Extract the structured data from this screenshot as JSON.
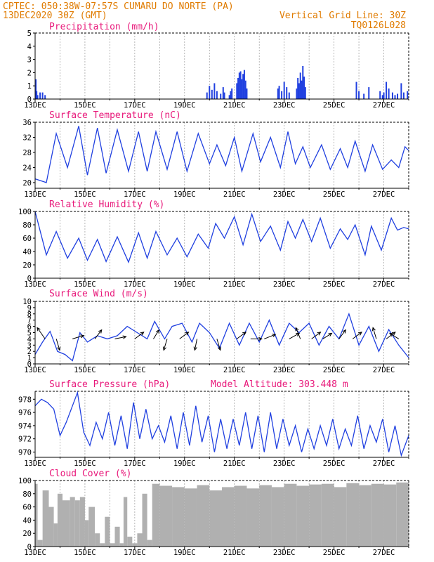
{
  "header": {
    "line1_left": "CPTEC:  050:38W-07:57S  CUMARU DO NORTE (PA)",
    "line2_left": "13DEC2020 30Z (GMT)",
    "line2_right": "Vertical Grid Line: 30Z",
    "line3_right": "TQ0126L028"
  },
  "colors": {
    "header": "#e07b00",
    "title": "#e8187a",
    "line": "#2040e0",
    "cloud": "#b0b0b0",
    "grid": "#9a9a9a"
  },
  "chart_data": [
    {
      "type": "bar",
      "title": "Precipitation (mm/h)",
      "xlabel": "",
      "ylabel": "mm/h",
      "x_tick_labels": [
        "13DEC",
        "15DEC",
        "17DEC",
        "19DEC",
        "21DEC",
        "23DEC",
        "25DEC",
        "27DEC"
      ],
      "yticks": [
        0,
        1,
        2,
        3,
        4,
        5
      ],
      "ylim": [
        0,
        5
      ],
      "x_range_days": [
        0,
        15
      ],
      "series": [
        {
          "name": "precipitation",
          "x": [
            0.03,
            0.06,
            0.1,
            0.2,
            0.3,
            0.4,
            6.9,
            7.0,
            7.1,
            7.2,
            7.3,
            7.45,
            7.55,
            7.6,
            7.8,
            7.85,
            7.9,
            8.1,
            8.15,
            8.2,
            8.25,
            8.3,
            8.35,
            8.4,
            8.45,
            8.5,
            9.75,
            9.8,
            9.9,
            10.0,
            10.1,
            10.2,
            10.5,
            10.55,
            10.6,
            10.65,
            10.7,
            10.75,
            10.8,
            10.85,
            12.9,
            13.0,
            13.2,
            13.4,
            13.85,
            13.95,
            14.0,
            14.1,
            14.2,
            14.35,
            14.45,
            14.55,
            14.7,
            14.8,
            14.95
          ],
          "values": [
            1.5,
            0.6,
            0.3,
            0.5,
            0.5,
            0.3,
            0.5,
            1.0,
            0.7,
            1.2,
            0.6,
            0.4,
            0.9,
            0.5,
            0.3,
            0.6,
            0.8,
            1.2,
            1.6,
            2.0,
            2.1,
            1.5,
            1.9,
            2.2,
            1.4,
            0.8,
            0.8,
            1.0,
            0.6,
            1.3,
            0.9,
            0.5,
            0.8,
            1.6,
            1.2,
            2.0,
            1.4,
            2.5,
            1.7,
            0.9,
            1.3,
            0.6,
            0.4,
            0.9,
            0.6,
            0.3,
            0.5,
            1.3,
            0.8,
            0.5,
            0.3,
            0.4,
            1.2,
            0.5,
            0.6
          ]
        }
      ]
    },
    {
      "type": "line",
      "title": "Surface Temperature (nC)",
      "x_tick_labels": [
        "13DEC",
        "15DEC",
        "17DEC",
        "19DEC",
        "21DEC",
        "23DEC",
        "25DEC",
        "27DEC"
      ],
      "yticks": [
        20,
        24,
        28,
        32,
        36
      ],
      "ylim": [
        18.5,
        36
      ],
      "x_range_days": [
        0,
        15
      ],
      "series": [
        {
          "name": "temperature",
          "x": [
            0,
            0.45,
            0.85,
            1.3,
            1.75,
            2.1,
            2.5,
            2.85,
            3.3,
            3.75,
            4.15,
            4.5,
            4.85,
            5.3,
            5.7,
            6.1,
            6.55,
            7.0,
            7.3,
            7.65,
            8.0,
            8.3,
            8.75,
            9.05,
            9.45,
            9.85,
            10.15,
            10.45,
            10.75,
            11.05,
            11.5,
            11.85,
            12.25,
            12.55,
            12.85,
            13.25,
            13.55,
            13.95,
            14.3,
            14.6,
            14.85,
            15
          ],
          "values": [
            21,
            20,
            33,
            24,
            35,
            22,
            34.5,
            22.5,
            34,
            23,
            33.5,
            23,
            33.5,
            23.5,
            33.5,
            23,
            33,
            25,
            30,
            24.5,
            32,
            23,
            33,
            25.5,
            32,
            24,
            33.5,
            25,
            29.5,
            24,
            30,
            23.5,
            29,
            24,
            31,
            23,
            30,
            23.5,
            26,
            24,
            29.5,
            28.5
          ]
        }
      ]
    },
    {
      "type": "line",
      "title": "Relative Humidity (%)",
      "x_tick_labels": [
        "13DEC",
        "15DEC",
        "17DEC",
        "19DEC",
        "21DEC",
        "23DEC",
        "25DEC",
        "27DEC"
      ],
      "yticks": [
        0,
        20,
        40,
        60,
        80,
        100
      ],
      "ylim": [
        0,
        100
      ],
      "x_range_days": [
        0,
        15
      ],
      "series": [
        {
          "name": "humidity",
          "x": [
            0,
            0.45,
            0.85,
            1.3,
            1.75,
            2.1,
            2.5,
            2.85,
            3.3,
            3.75,
            4.15,
            4.5,
            4.85,
            5.3,
            5.7,
            6.1,
            6.55,
            6.95,
            7.25,
            7.6,
            8.0,
            8.35,
            8.7,
            9.05,
            9.45,
            9.85,
            10.15,
            10.45,
            10.75,
            11.1,
            11.45,
            11.85,
            12.25,
            12.55,
            12.85,
            13.25,
            13.5,
            13.9,
            14.3,
            14.55,
            14.8,
            15
          ],
          "values": [
            100,
            35,
            70,
            30,
            60,
            27,
            58,
            25,
            62,
            24,
            68,
            30,
            70,
            35,
            60,
            32,
            66,
            45,
            82,
            60,
            92,
            50,
            96,
            55,
            78,
            42,
            85,
            60,
            88,
            55,
            90,
            45,
            74,
            58,
            80,
            35,
            78,
            42,
            90,
            72,
            76,
            74
          ]
        }
      ]
    },
    {
      "type": "line",
      "title": "Surface Wind (m/s)",
      "x_tick_labels": [
        "13DEC",
        "15DEC",
        "17DEC",
        "19DEC",
        "21DEC",
        "23DEC",
        "25DEC",
        "27DEC"
      ],
      "yticks": [
        0,
        1,
        2,
        3,
        4,
        5,
        6,
        7,
        8,
        9,
        10
      ],
      "ylim": [
        0,
        10
      ],
      "x_range_days": [
        0,
        15
      ],
      "series": [
        {
          "name": "wind speed",
          "x": [
            0,
            0.3,
            0.6,
            0.9,
            1.2,
            1.5,
            1.8,
            2.1,
            2.5,
            2.9,
            3.3,
            3.7,
            4.1,
            4.5,
            4.8,
            5.2,
            5.5,
            5.9,
            6.3,
            6.6,
            7.0,
            7.4,
            7.8,
            8.2,
            8.6,
            9.0,
            9.4,
            9.8,
            10.2,
            10.6,
            11.0,
            11.4,
            11.8,
            12.2,
            12.6,
            13.0,
            13.4,
            13.8,
            14.2,
            14.6,
            15
          ],
          "values": [
            1.5,
            3.5,
            5.2,
            2,
            1.5,
            0.5,
            5,
            3.5,
            4.5,
            4,
            4.5,
            6,
            5,
            4,
            6.8,
            4,
            6,
            6.5,
            3.5,
            6.5,
            5,
            2.5,
            6.5,
            3,
            6.5,
            3.5,
            7,
            3,
            6.5,
            5,
            6.5,
            3,
            6,
            4,
            8,
            3,
            6,
            2,
            5.5,
            3,
            1
          ]
        }
      ],
      "wind_vectors": [
        {
          "x": 0.4,
          "u": -0.7,
          "v": 1
        },
        {
          "x": 0.85,
          "u": 0.3,
          "v": -1
        },
        {
          "x": 1.5,
          "u": 1,
          "v": 0.3
        },
        {
          "x": 2.4,
          "u": 0.6,
          "v": 0.8
        },
        {
          "x": 3.2,
          "u": 1,
          "v": 0.2
        },
        {
          "x": 4.0,
          "u": 0.8,
          "v": 0.6
        },
        {
          "x": 4.75,
          "u": 0.5,
          "v": 0.8
        },
        {
          "x": 5.3,
          "u": -0.3,
          "v": -1
        },
        {
          "x": 5.8,
          "u": 0.8,
          "v": 0.6
        },
        {
          "x": 6.5,
          "u": -0.2,
          "v": -1
        },
        {
          "x": 7.3,
          "u": 0.3,
          "v": -1
        },
        {
          "x": 8.1,
          "u": 0.8,
          "v": 0.6
        },
        {
          "x": 8.65,
          "u": 1,
          "v": 0
        },
        {
          "x": 9.2,
          "u": 1,
          "v": 0.4
        },
        {
          "x": 10.2,
          "u": 0.9,
          "v": 0.5
        },
        {
          "x": 10.65,
          "u": -0.4,
          "v": 1
        },
        {
          "x": 11.1,
          "u": 0.8,
          "v": 0.6
        },
        {
          "x": 11.55,
          "u": 0.8,
          "v": 0.5
        },
        {
          "x": 12.2,
          "u": 0.6,
          "v": 0.8
        },
        {
          "x": 12.75,
          "u": 0.8,
          "v": 0.6
        },
        {
          "x": 13.7,
          "u": -0.3,
          "v": 1
        },
        {
          "x": 14.1,
          "u": 0.8,
          "v": 0.6
        },
        {
          "x": 14.6,
          "u": -0.8,
          "v": 0.5
        }
      ]
    },
    {
      "type": "line",
      "title": "Surface Pressure (hPa)",
      "annotation": "Model Altitude: 303.448 m",
      "x_tick_labels": [
        "13DEC",
        "15DEC",
        "17DEC",
        "19DEC",
        "21DEC",
        "23DEC",
        "25DEC",
        "27DEC"
      ],
      "yticks": [
        970,
        972,
        974,
        976,
        978
      ],
      "ylim": [
        969.2,
        979.2
      ],
      "x_range_days": [
        0,
        15
      ],
      "series": [
        {
          "name": "pressure",
          "x": [
            0,
            0.25,
            0.5,
            0.75,
            1.0,
            1.25,
            1.5,
            1.7,
            1.95,
            2.2,
            2.45,
            2.7,
            2.95,
            3.2,
            3.45,
            3.7,
            3.95,
            4.2,
            4.45,
            4.7,
            4.95,
            5.2,
            5.45,
            5.7,
            5.95,
            6.2,
            6.45,
            6.7,
            6.95,
            7.2,
            7.45,
            7.7,
            7.95,
            8.2,
            8.45,
            8.7,
            8.95,
            9.2,
            9.45,
            9.7,
            9.95,
            10.2,
            10.45,
            10.7,
            10.95,
            11.2,
            11.45,
            11.7,
            11.95,
            12.2,
            12.45,
            12.7,
            12.95,
            13.2,
            13.45,
            13.7,
            13.95,
            14.2,
            14.45,
            14.7,
            15
          ],
          "values": [
            977,
            978,
            977.5,
            976.5,
            972.5,
            974.5,
            977,
            979,
            973,
            971,
            974.5,
            972,
            976,
            971,
            975.5,
            970.5,
            977.5,
            972,
            976.5,
            972,
            974,
            971.5,
            975.5,
            970.5,
            976,
            971,
            977,
            971.5,
            975.5,
            970,
            975,
            970.5,
            975,
            971,
            976,
            970.5,
            975.5,
            970,
            976,
            970.5,
            975,
            971,
            974,
            970,
            973.5,
            970.5,
            974,
            971,
            975,
            970.5,
            973.5,
            971,
            975.5,
            970.5,
            974,
            971.5,
            975,
            970,
            974,
            969.5,
            972.5
          ]
        }
      ]
    },
    {
      "type": "bar",
      "title": "Cloud Cover (%)",
      "x_tick_labels": [
        "13DEC",
        "15DEC",
        "17DEC",
        "19DEC",
        "21DEC",
        "23DEC",
        "25DEC",
        "27DEC"
      ],
      "yticks": [
        0,
        20,
        40,
        60,
        80,
        100
      ],
      "ylim": [
        0,
        100
      ],
      "x_range_days": [
        0,
        15
      ],
      "series": [
        {
          "name": "cloud cover",
          "x": [
            0,
            0.1,
            0.3,
            0.55,
            0.75,
            0.9,
            1.1,
            1.4,
            1.6,
            1.8,
            2.0,
            2.15,
            2.4,
            2.6,
            2.8,
            3.0,
            3.2,
            3.4,
            3.55,
            3.7,
            3.9,
            4.1,
            4.3,
            4.5,
            4.7,
            5.0,
            5.5,
            6.0,
            6.5,
            7.0,
            7.5,
            8.0,
            8.5,
            9.0,
            9.5,
            10.0,
            10.5,
            11.0,
            11.5,
            12.0,
            12.5,
            13.0,
            13.5,
            14.0,
            14.5,
            15
          ],
          "values": [
            95,
            10,
            85,
            60,
            35,
            80,
            70,
            75,
            70,
            75,
            40,
            60,
            20,
            5,
            45,
            5,
            30,
            5,
            75,
            15,
            5,
            20,
            80,
            10,
            95,
            92,
            90,
            88,
            93,
            85,
            90,
            92,
            88,
            93,
            90,
            95,
            92,
            94,
            95,
            90,
            96,
            93,
            95,
            94,
            97,
            96
          ]
        }
      ]
    }
  ]
}
